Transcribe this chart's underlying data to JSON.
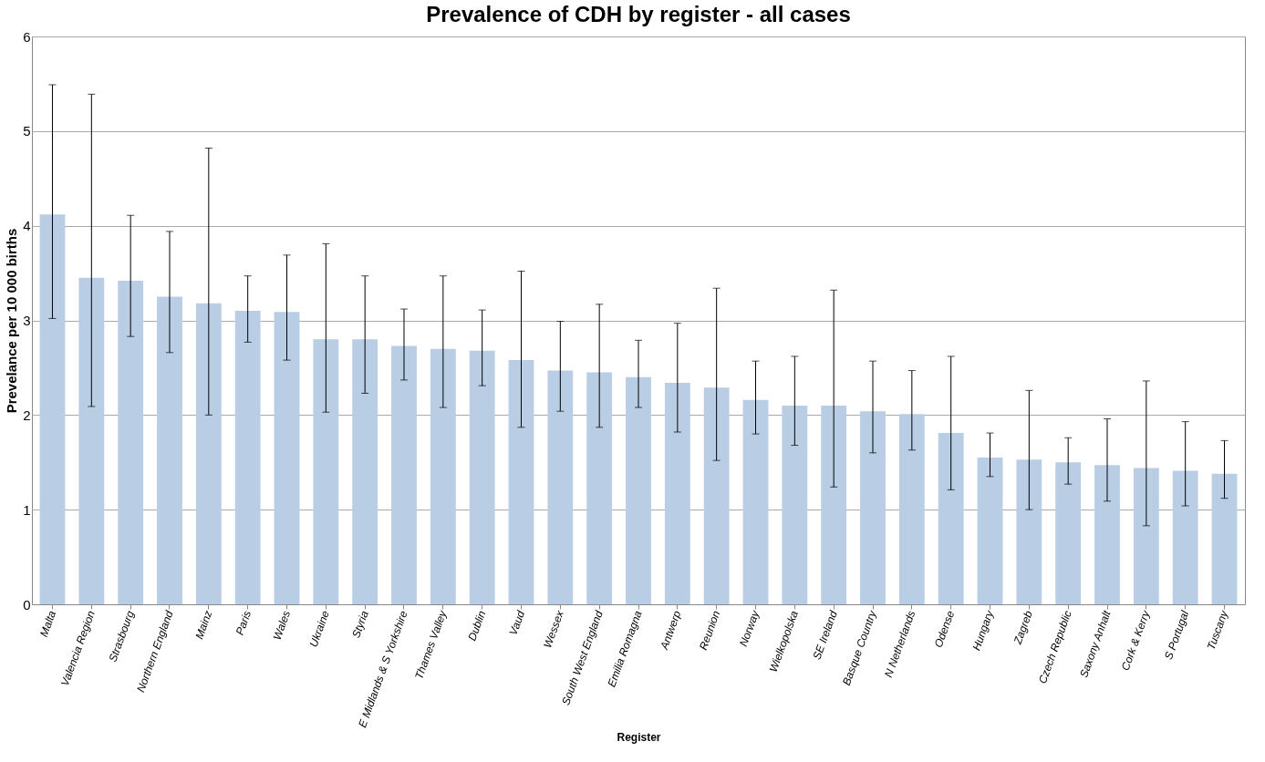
{
  "chart_data": {
    "type": "bar",
    "title": "Prevalence of CDH by register - all cases",
    "xlabel": "Register",
    "ylabel": "Prevelance per 10 000 births",
    "categories": [
      "Malta",
      "Valencia Region",
      "Strasbourg",
      "Northern England",
      "Mainz",
      "Paris",
      "Wales",
      "Ukraine",
      "Styria",
      "E Midlands & S Yorkshire",
      "Thames Valley",
      "Dublin",
      "Vaud",
      "Wessex",
      "South West England",
      "Emilia Romagna",
      "Antwerp",
      "Reunion",
      "Norway",
      "Wielkopolska",
      "SE Ireland",
      "Basque Country",
      "N Netherlands",
      "Odense",
      "Hungary",
      "Zagreb",
      "Czech Republic",
      "Saxony Anhalt",
      "Cork & Kerry",
      "S Portugal",
      "Tuscany"
    ],
    "values": [
      4.12,
      3.45,
      3.42,
      3.25,
      3.18,
      3.1,
      3.09,
      2.8,
      2.8,
      2.73,
      2.7,
      2.68,
      2.58,
      2.47,
      2.45,
      2.4,
      2.34,
      2.29,
      2.16,
      2.1,
      2.1,
      2.04,
      2.01,
      1.81,
      1.55,
      1.53,
      1.5,
      1.47,
      1.44,
      1.41,
      1.38
    ],
    "errors": [
      [
        3.02,
        5.49
      ],
      [
        2.09,
        5.39
      ],
      [
        2.83,
        4.11
      ],
      [
        2.66,
        3.94
      ],
      [
        2.0,
        4.82
      ],
      [
        2.77,
        3.47
      ],
      [
        2.58,
        3.69
      ],
      [
        2.03,
        3.81
      ],
      [
        2.23,
        3.47
      ],
      [
        2.37,
        3.12
      ],
      [
        2.08,
        3.47
      ],
      [
        2.31,
        3.11
      ],
      [
        1.87,
        3.52
      ],
      [
        2.04,
        2.99
      ],
      [
        1.87,
        3.17
      ],
      [
        2.08,
        2.79
      ],
      [
        1.82,
        2.97
      ],
      [
        1.52,
        3.34
      ],
      [
        1.8,
        2.57
      ],
      [
        1.68,
        2.62
      ],
      [
        1.24,
        3.32
      ],
      [
        1.6,
        2.57
      ],
      [
        1.63,
        2.47
      ],
      [
        1.21,
        2.62
      ],
      [
        1.35,
        1.81
      ],
      [
        1.0,
        2.26
      ],
      [
        1.27,
        1.76
      ],
      [
        1.09,
        1.96
      ],
      [
        0.83,
        2.36
      ],
      [
        1.04,
        1.93
      ],
      [
        1.12,
        1.73
      ]
    ],
    "color": "#b9cde5",
    "ylim": [
      0,
      6
    ],
    "yticks": [
      0,
      1,
      2,
      3,
      4,
      5,
      6
    ],
    "grid": "y"
  }
}
